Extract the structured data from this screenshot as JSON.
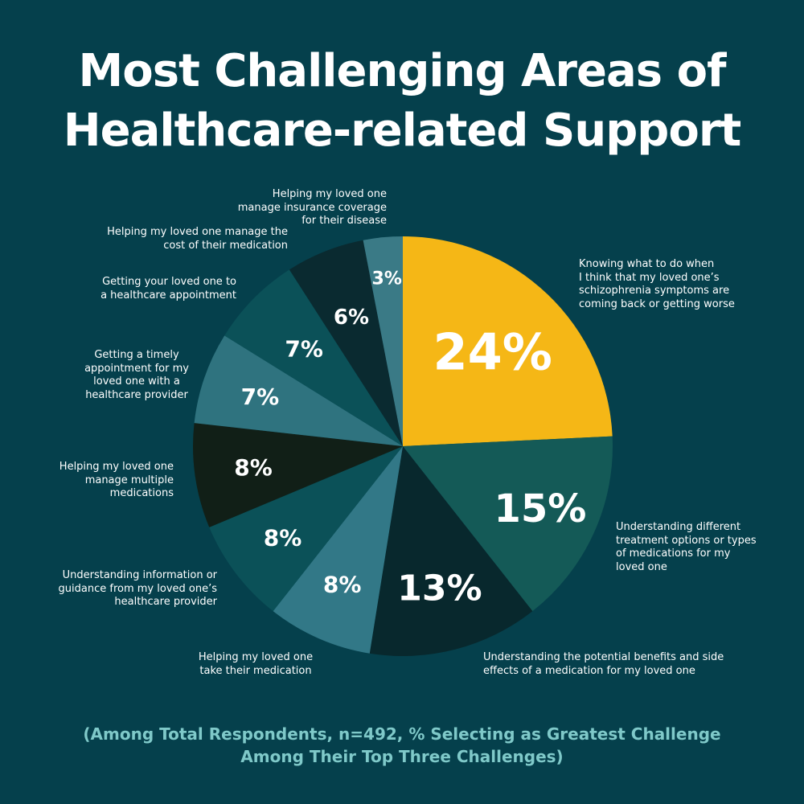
{
  "chart_data": {
    "type": "pie",
    "title_lines": [
      "Most Challenging Areas of",
      "Healthcare-related Support"
    ],
    "footnote_lines": [
      "(Among Total Respondents, n=492, % Selecting as Greatest Challenge",
      "Among Their Top Three Challenges)"
    ],
    "slices": [
      {
        "value": 24,
        "label": "24%",
        "color": "#f5b716",
        "label_color": "#0e3d3f",
        "category_lines": [
          "Knowing what to do when",
          "I think that my loved one’s",
          "schizophrenia symptoms are",
          "coming back or getting worse"
        ]
      },
      {
        "value": 15,
        "label": "15%",
        "color": "#145a57",
        "label_color": "#ffffff",
        "category_lines": [
          "Understanding different",
          "treatment options or types",
          "of medications for my",
          "loved one"
        ]
      },
      {
        "value": 13,
        "label": "13%",
        "color": "#08282d",
        "label_color": "#ffffff",
        "category_lines": [
          "Understanding the potential benefits and side",
          "effects of a medication for my loved one"
        ]
      },
      {
        "value": 8,
        "label": "8%",
        "color": "#327887",
        "label_color": "#ffffff",
        "category_lines": [
          "Helping my loved one",
          "take their medication"
        ]
      },
      {
        "value": 8,
        "label": "8%",
        "color": "#0b5158",
        "label_color": "#ffffff",
        "category_lines": [
          "Understanding information or",
          "guidance from my loved one’s",
          "healthcare provider"
        ]
      },
      {
        "value": 8,
        "label": "8%",
        "color": "#111f17",
        "label_color": "#ffffff",
        "category_lines": [
          "Helping my loved one",
          "manage multiple",
          "medications"
        ]
      },
      {
        "value": 7,
        "label": "7%",
        "color": "#2f737f",
        "label_color": "#ffffff",
        "category_lines": [
          "Getting a timely",
          "appointment for my",
          "loved one with a",
          "healthcare provider"
        ]
      },
      {
        "value": 7,
        "label": "7%",
        "color": "#0b5158",
        "label_color": "#ffffff",
        "category_lines": [
          "Getting your loved one to",
          "a healthcare appointment"
        ]
      },
      {
        "value": 6,
        "label": "6%",
        "color": "#0a2a30",
        "label_color": "#ffffff",
        "category_lines": [
          "Helping my loved one manage the",
          "cost of their medication"
        ]
      },
      {
        "value": 3,
        "label": "3%",
        "color": "#3a7a86",
        "label_color": "#ffffff",
        "category_lines": [
          "Helping my loved one",
          "manage insurance coverage",
          "for their disease"
        ]
      }
    ]
  }
}
